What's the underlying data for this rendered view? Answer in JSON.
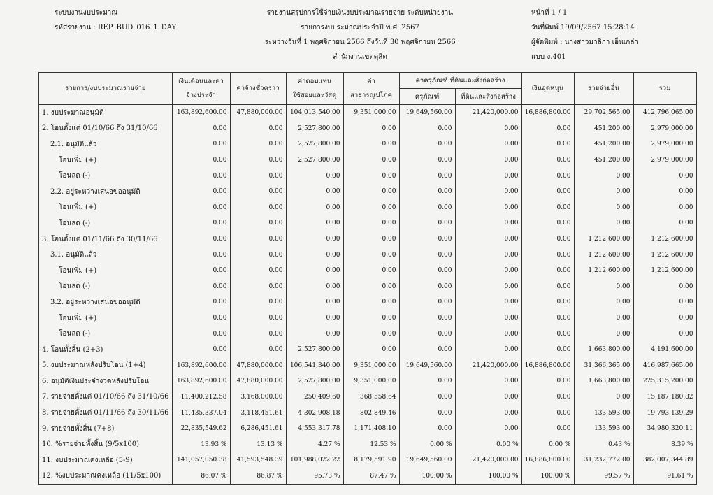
{
  "header": {
    "system": "ระบบงานงบประมาณ",
    "code": "รหัสรายงาน : REP_BUD_016_1_DAY",
    "title": "รายงานสรุปการใช้จ่ายเงินงบประมาณรายจ่าย ระดับหน่วยงาน",
    "year": "รายการงบประมาณประจำปี พ.ศ. 2567",
    "period": "ระหว่างวันที่ 1 พฤศจิกายน 2566 ถึงวันที่ 30 พฤศจิกายน 2566",
    "office": "สำนักงานเขตดุสิต",
    "page": "หน้าที่ 1 / 1",
    "printed": "วันที่พิมพ์ 19/09/2567 15:28:14",
    "printer": "ผู้จัดพิมพ์ : นางสาวมาลิกา เอ็นเกล่า",
    "form": "แบบ ง.401"
  },
  "table": {
    "columns": [
      "รายการ/งบประมาณรายจ่าย",
      "เงินเดือนและค่าจ้างประจำ",
      "ค่าจ้างชั่วคราว",
      "ค่าตอบแทนใช้สอยและวัสดุ",
      "ค่าสาธารณูปโภค",
      "ค่าครุภัณฑ์ ที่ดินและสิ่งก่อสร้าง",
      "เงินอุดหนุน",
      "รายจ่ายอื่น",
      "รวม"
    ],
    "subcolumns": [
      "ครุภัณฑ์",
      "ที่ดินและสิ่งก่อสร้าง"
    ],
    "rows": [
      [
        "1. งบประมาณอนุมัติ",
        "163,892,600.00",
        "47,880,000.00",
        "104,013,540.00",
        "9,351,000.00",
        "19,649,560.00",
        "21,420,000.00",
        "16,886,800.00",
        "29,702,565.00",
        "412,796,065.00"
      ],
      [
        "2. โอนตั้งแต่ 01/10/66 ถึง 31/10/66",
        "0.00",
        "0.00",
        "2,527,800.00",
        "0.00",
        "0.00",
        "0.00",
        "0.00",
        "451,200.00",
        "2,979,000.00"
      ],
      [
        "2.1. อนุมัติแล้ว",
        "0.00",
        "0.00",
        "2,527,800.00",
        "0.00",
        "0.00",
        "0.00",
        "0.00",
        "451,200.00",
        "2,979,000.00"
      ],
      [
        "โอนเพิ่ม (+)",
        "0.00",
        "0.00",
        "2,527,800.00",
        "0.00",
        "0.00",
        "0.00",
        "0.00",
        "451,200.00",
        "2,979,000.00"
      ],
      [
        "โอนลด (-)",
        "0.00",
        "0.00",
        "0.00",
        "0.00",
        "0.00",
        "0.00",
        "0.00",
        "0.00",
        "0.00"
      ],
      [
        "2.2. อยู่ระหว่างเสนอขออนุมัติ",
        "0.00",
        "0.00",
        "0.00",
        "0.00",
        "0.00",
        "0.00",
        "0.00",
        "0.00",
        "0.00"
      ],
      [
        "โอนเพิ่ม (+)",
        "0.00",
        "0.00",
        "0.00",
        "0.00",
        "0.00",
        "0.00",
        "0.00",
        "0.00",
        "0.00"
      ],
      [
        "โอนลด (-)",
        "0.00",
        "0.00",
        "0.00",
        "0.00",
        "0.00",
        "0.00",
        "0.00",
        "0.00",
        "0.00"
      ],
      [
        "3. โอนตั้งแต่ 01/11/66 ถึง 30/11/66",
        "0.00",
        "0.00",
        "0.00",
        "0.00",
        "0.00",
        "0.00",
        "0.00",
        "1,212,600.00",
        "1,212,600.00"
      ],
      [
        "3.1. อนุมัติแล้ว",
        "0.00",
        "0.00",
        "0.00",
        "0.00",
        "0.00",
        "0.00",
        "0.00",
        "1,212,600.00",
        "1,212,600.00"
      ],
      [
        "โอนเพิ่ม (+)",
        "0.00",
        "0.00",
        "0.00",
        "0.00",
        "0.00",
        "0.00",
        "0.00",
        "1,212,600.00",
        "1,212,600.00"
      ],
      [
        "โอนลด (-)",
        "0.00",
        "0.00",
        "0.00",
        "0.00",
        "0.00",
        "0.00",
        "0.00",
        "0.00",
        "0.00"
      ],
      [
        "3.2. อยู่ระหว่างเสนอขออนุมัติ",
        "0.00",
        "0.00",
        "0.00",
        "0.00",
        "0.00",
        "0.00",
        "0.00",
        "0.00",
        "0.00"
      ],
      [
        "โอนเพิ่ม (+)",
        "0.00",
        "0.00",
        "0.00",
        "0.00",
        "0.00",
        "0.00",
        "0.00",
        "0.00",
        "0.00"
      ],
      [
        "โอนลด (-)",
        "0.00",
        "0.00",
        "0.00",
        "0.00",
        "0.00",
        "0.00",
        "0.00",
        "0.00",
        "0.00"
      ],
      [
        "4. โอนทั้งสิ้น (2+3)",
        "0.00",
        "0.00",
        "2,527,800.00",
        "0.00",
        "0.00",
        "0.00",
        "0.00",
        "1,663,800.00",
        "4,191,600.00"
      ],
      [
        "5. งบประมาณหลังปรับโอน (1+4)",
        "163,892,600.00",
        "47,880,000.00",
        "106,541,340.00",
        "9,351,000.00",
        "19,649,560.00",
        "21,420,000.00",
        "16,886,800.00",
        "31,366,365.00",
        "416,987,665.00"
      ],
      [
        "6. อนุมัติเงินประจำงวดหลังปรับโอน",
        "163,892,600.00",
        "47,880,000.00",
        "2,527,800.00",
        "9,351,000.00",
        "0.00",
        "0.00",
        "0.00",
        "1,663,800.00",
        "225,315,200.00"
      ],
      [
        "7. รายจ่ายตั้งแต่ 01/10/66 ถึง 31/10/66",
        "11,400,212.58",
        "3,168,000.00",
        "250,409.60",
        "368,558.64",
        "0.00",
        "0.00",
        "0.00",
        "0.00",
        "15,187,180.82"
      ],
      [
        "8. รายจ่ายตั้งแต่ 01/11/66 ถึง 30/11/66",
        "11,435,337.04",
        "3,118,451.61",
        "4,302,908.18",
        "802,849.46",
        "0.00",
        "0.00",
        "0.00",
        "133,593.00",
        "19,793,139.29"
      ],
      [
        "9. รายจ่ายทั้งสิ้น (7+8)",
        "22,835,549.62",
        "6,286,451.61",
        "4,553,317.78",
        "1,171,408.10",
        "0.00",
        "0.00",
        "0.00",
        "133,593.00",
        "34,980,320.11"
      ],
      [
        "10. %รายจ่ายทั้งสิ้น (9/5x100)",
        "13.93 %",
        "13.13 %",
        "4.27 %",
        "12.53 %",
        "0.00 %",
        "0.00 %",
        "0.00 %",
        "0.43 %",
        "8.39 %"
      ],
      [
        "11. งบประมาณคงเหลือ (5-9)",
        "141,057,050.38",
        "41,593,548.39",
        "101,988,022.22",
        "8,179,591.90",
        "19,649,560.00",
        "21,420,000.00",
        "16,886,800.00",
        "31,232,772.00",
        "382,007,344.89"
      ],
      [
        "12. %งบประมาณคงเหลือ (11/5x100)",
        "86.07 %",
        "86.87 %",
        "95.73 %",
        "87.47 %",
        "100.00 %",
        "100.00 %",
        "100.00 %",
        "99.57 %",
        "91.61 %"
      ]
    ]
  }
}
